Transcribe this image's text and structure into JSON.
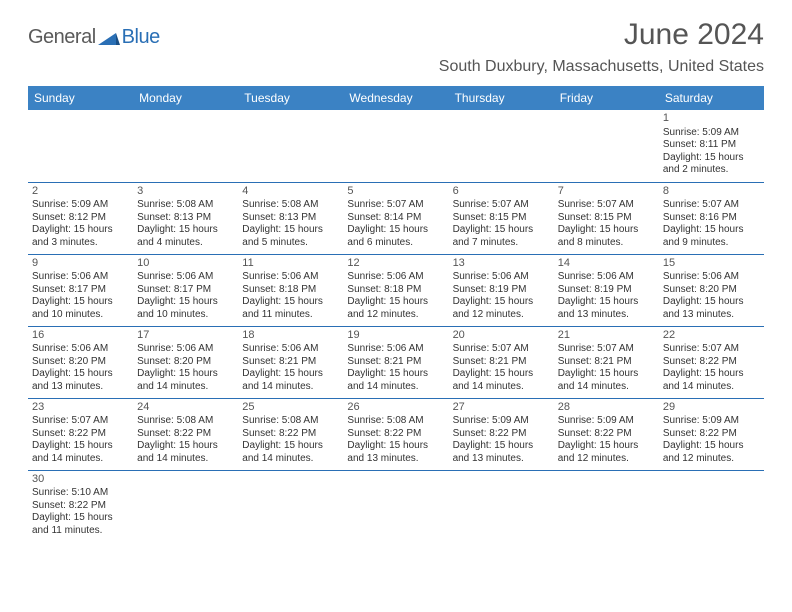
{
  "brand": {
    "part1": "General",
    "part2": "Blue"
  },
  "title": "June 2024",
  "location": "South Duxbury, Massachusetts, United States",
  "colors": {
    "header_bg": "#3b82c4",
    "header_text": "#ffffff",
    "row_divider": "#2a6fb5",
    "text": "#333333",
    "title_text": "#555555",
    "brand_gray": "#5a5a5a",
    "brand_blue": "#2a6fb5",
    "background": "#ffffff"
  },
  "weekdays": [
    "Sunday",
    "Monday",
    "Tuesday",
    "Wednesday",
    "Thursday",
    "Friday",
    "Saturday"
  ],
  "weeks": [
    [
      null,
      null,
      null,
      null,
      null,
      null,
      {
        "n": "1",
        "sr": "Sunrise: 5:09 AM",
        "ss": "Sunset: 8:11 PM",
        "d1": "Daylight: 15 hours",
        "d2": "and 2 minutes."
      }
    ],
    [
      {
        "n": "2",
        "sr": "Sunrise: 5:09 AM",
        "ss": "Sunset: 8:12 PM",
        "d1": "Daylight: 15 hours",
        "d2": "and 3 minutes."
      },
      {
        "n": "3",
        "sr": "Sunrise: 5:08 AM",
        "ss": "Sunset: 8:13 PM",
        "d1": "Daylight: 15 hours",
        "d2": "and 4 minutes."
      },
      {
        "n": "4",
        "sr": "Sunrise: 5:08 AM",
        "ss": "Sunset: 8:13 PM",
        "d1": "Daylight: 15 hours",
        "d2": "and 5 minutes."
      },
      {
        "n": "5",
        "sr": "Sunrise: 5:07 AM",
        "ss": "Sunset: 8:14 PM",
        "d1": "Daylight: 15 hours",
        "d2": "and 6 minutes."
      },
      {
        "n": "6",
        "sr": "Sunrise: 5:07 AM",
        "ss": "Sunset: 8:15 PM",
        "d1": "Daylight: 15 hours",
        "d2": "and 7 minutes."
      },
      {
        "n": "7",
        "sr": "Sunrise: 5:07 AM",
        "ss": "Sunset: 8:15 PM",
        "d1": "Daylight: 15 hours",
        "d2": "and 8 minutes."
      },
      {
        "n": "8",
        "sr": "Sunrise: 5:07 AM",
        "ss": "Sunset: 8:16 PM",
        "d1": "Daylight: 15 hours",
        "d2": "and 9 minutes."
      }
    ],
    [
      {
        "n": "9",
        "sr": "Sunrise: 5:06 AM",
        "ss": "Sunset: 8:17 PM",
        "d1": "Daylight: 15 hours",
        "d2": "and 10 minutes."
      },
      {
        "n": "10",
        "sr": "Sunrise: 5:06 AM",
        "ss": "Sunset: 8:17 PM",
        "d1": "Daylight: 15 hours",
        "d2": "and 10 minutes."
      },
      {
        "n": "11",
        "sr": "Sunrise: 5:06 AM",
        "ss": "Sunset: 8:18 PM",
        "d1": "Daylight: 15 hours",
        "d2": "and 11 minutes."
      },
      {
        "n": "12",
        "sr": "Sunrise: 5:06 AM",
        "ss": "Sunset: 8:18 PM",
        "d1": "Daylight: 15 hours",
        "d2": "and 12 minutes."
      },
      {
        "n": "13",
        "sr": "Sunrise: 5:06 AM",
        "ss": "Sunset: 8:19 PM",
        "d1": "Daylight: 15 hours",
        "d2": "and 12 minutes."
      },
      {
        "n": "14",
        "sr": "Sunrise: 5:06 AM",
        "ss": "Sunset: 8:19 PM",
        "d1": "Daylight: 15 hours",
        "d2": "and 13 minutes."
      },
      {
        "n": "15",
        "sr": "Sunrise: 5:06 AM",
        "ss": "Sunset: 8:20 PM",
        "d1": "Daylight: 15 hours",
        "d2": "and 13 minutes."
      }
    ],
    [
      {
        "n": "16",
        "sr": "Sunrise: 5:06 AM",
        "ss": "Sunset: 8:20 PM",
        "d1": "Daylight: 15 hours",
        "d2": "and 13 minutes."
      },
      {
        "n": "17",
        "sr": "Sunrise: 5:06 AM",
        "ss": "Sunset: 8:20 PM",
        "d1": "Daylight: 15 hours",
        "d2": "and 14 minutes."
      },
      {
        "n": "18",
        "sr": "Sunrise: 5:06 AM",
        "ss": "Sunset: 8:21 PM",
        "d1": "Daylight: 15 hours",
        "d2": "and 14 minutes."
      },
      {
        "n": "19",
        "sr": "Sunrise: 5:06 AM",
        "ss": "Sunset: 8:21 PM",
        "d1": "Daylight: 15 hours",
        "d2": "and 14 minutes."
      },
      {
        "n": "20",
        "sr": "Sunrise: 5:07 AM",
        "ss": "Sunset: 8:21 PM",
        "d1": "Daylight: 15 hours",
        "d2": "and 14 minutes."
      },
      {
        "n": "21",
        "sr": "Sunrise: 5:07 AM",
        "ss": "Sunset: 8:21 PM",
        "d1": "Daylight: 15 hours",
        "d2": "and 14 minutes."
      },
      {
        "n": "22",
        "sr": "Sunrise: 5:07 AM",
        "ss": "Sunset: 8:22 PM",
        "d1": "Daylight: 15 hours",
        "d2": "and 14 minutes."
      }
    ],
    [
      {
        "n": "23",
        "sr": "Sunrise: 5:07 AM",
        "ss": "Sunset: 8:22 PM",
        "d1": "Daylight: 15 hours",
        "d2": "and 14 minutes."
      },
      {
        "n": "24",
        "sr": "Sunrise: 5:08 AM",
        "ss": "Sunset: 8:22 PM",
        "d1": "Daylight: 15 hours",
        "d2": "and 14 minutes."
      },
      {
        "n": "25",
        "sr": "Sunrise: 5:08 AM",
        "ss": "Sunset: 8:22 PM",
        "d1": "Daylight: 15 hours",
        "d2": "and 14 minutes."
      },
      {
        "n": "26",
        "sr": "Sunrise: 5:08 AM",
        "ss": "Sunset: 8:22 PM",
        "d1": "Daylight: 15 hours",
        "d2": "and 13 minutes."
      },
      {
        "n": "27",
        "sr": "Sunrise: 5:09 AM",
        "ss": "Sunset: 8:22 PM",
        "d1": "Daylight: 15 hours",
        "d2": "and 13 minutes."
      },
      {
        "n": "28",
        "sr": "Sunrise: 5:09 AM",
        "ss": "Sunset: 8:22 PM",
        "d1": "Daylight: 15 hours",
        "d2": "and 12 minutes."
      },
      {
        "n": "29",
        "sr": "Sunrise: 5:09 AM",
        "ss": "Sunset: 8:22 PM",
        "d1": "Daylight: 15 hours",
        "d2": "and 12 minutes."
      }
    ],
    [
      {
        "n": "30",
        "sr": "Sunrise: 5:10 AM",
        "ss": "Sunset: 8:22 PM",
        "d1": "Daylight: 15 hours",
        "d2": "and 11 minutes."
      },
      null,
      null,
      null,
      null,
      null,
      null
    ]
  ]
}
